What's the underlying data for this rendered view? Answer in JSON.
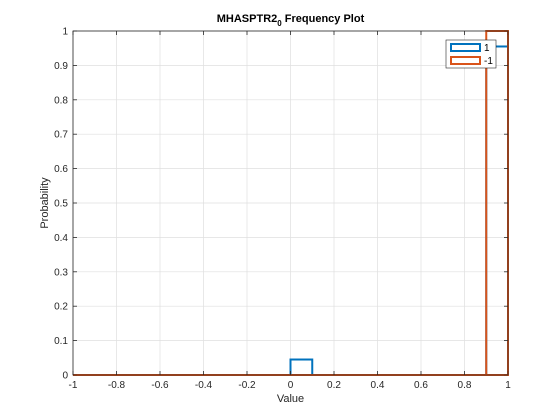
{
  "chart_data": {
    "type": "bar",
    "title": "MHASPTR2",
    "title_subscript": "0",
    "title_suffix": " Frequency Plot",
    "xlabel": "Value",
    "ylabel": "Probability",
    "xlim": [
      -1,
      1
    ],
    "ylim": [
      0,
      1
    ],
    "xticks": [
      "-1",
      "-0.8",
      "-0.6",
      "-0.4",
      "-0.2",
      "0",
      "0.2",
      "0.4",
      "0.6",
      "0.8",
      "1"
    ],
    "yticks": [
      "0",
      "0.1",
      "0.2",
      "0.3",
      "0.4",
      "0.5",
      "0.6",
      "0.7",
      "0.8",
      "0.9",
      "1"
    ],
    "grid": true,
    "legend_position": "top-right",
    "series": [
      {
        "name": "1",
        "color": "#0072BD",
        "bins": [
          {
            "x0": -1.0,
            "x1": 0.0,
            "value": 0.0
          },
          {
            "x0": 0.0,
            "x1": 0.1,
            "value": 0.045
          },
          {
            "x0": 0.1,
            "x1": 0.9,
            "value": 0.0
          },
          {
            "x0": 0.9,
            "x1": 1.0,
            "value": 0.955
          }
        ]
      },
      {
        "name": "-1",
        "color": "#D95319",
        "bins": [
          {
            "x0": -1.0,
            "x1": 0.9,
            "value": 0.0
          },
          {
            "x0": 0.9,
            "x1": 1.0,
            "value": 1.0
          }
        ]
      }
    ]
  }
}
